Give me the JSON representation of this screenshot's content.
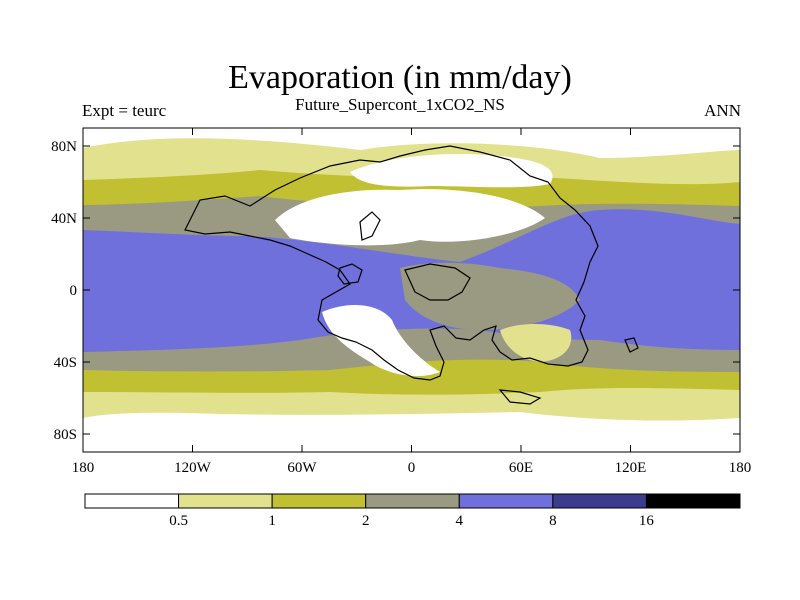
{
  "title": "Evaporation (in mm/day)",
  "subtitle": "Future_Supercont_1xCO2_NS",
  "left_label": "Expt = teurc",
  "right_label": "ANN",
  "map": {
    "projection": "cylindrical-equidistant",
    "lon_range": [
      -180,
      180
    ],
    "lat_range": [
      -90,
      90
    ],
    "x_ticks": [
      {
        "value": -180,
        "label": "180"
      },
      {
        "value": -120,
        "label": "120W"
      },
      {
        "value": -60,
        "label": "60W"
      },
      {
        "value": 0,
        "label": "0"
      },
      {
        "value": 60,
        "label": "60E"
      },
      {
        "value": 120,
        "label": "120E"
      },
      {
        "value": 180,
        "label": "180"
      }
    ],
    "y_ticks": [
      {
        "value": 80,
        "label": "80N"
      },
      {
        "value": 40,
        "label": "40N"
      },
      {
        "value": 0,
        "label": "0"
      },
      {
        "value": -40,
        "label": "40S"
      },
      {
        "value": -80,
        "label": "80S"
      }
    ]
  },
  "legend": {
    "boundaries": [
      "0.5",
      "1",
      "2",
      "4",
      "8",
      "16"
    ],
    "colors": [
      "#ffffff",
      "#e2e28e",
      "#c0c032",
      "#9a9a82",
      "#7070dc",
      "#3c3c8c",
      "#000000"
    ]
  }
}
